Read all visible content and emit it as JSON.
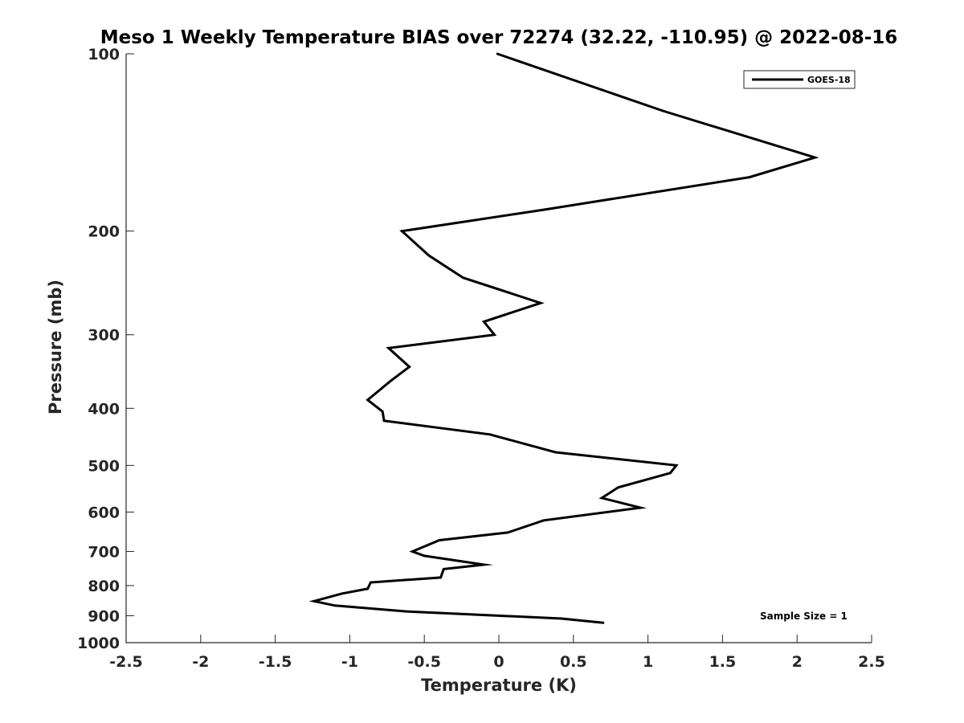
{
  "chart_data": {
    "type": "line",
    "title": "Meso 1 Weekly Temperature BIAS over 72274 (32.22, -110.95) @ 2022-08-16",
    "xlabel": "Temperature (K)",
    "ylabel": "Pressure (mb)",
    "xlim": [
      -2.5,
      2.5
    ],
    "ylim": [
      100,
      1000
    ],
    "yscale": "log",
    "y_reversed": true,
    "x_ticks": [
      -2.5,
      -2,
      -1.5,
      -1,
      -0.5,
      0,
      0.5,
      1,
      1.5,
      2,
      2.5
    ],
    "x_tick_labels": [
      "-2.5",
      "-2",
      "-1.5",
      "-1",
      "-0.5",
      "0",
      "0.5",
      "1",
      "1.5",
      "2",
      "2.5"
    ],
    "y_ticks": [
      100,
      200,
      300,
      400,
      500,
      600,
      700,
      800,
      900,
      1000
    ],
    "y_tick_labels": [
      "100",
      "200",
      "300",
      "400",
      "500",
      "600",
      "700",
      "800",
      "900",
      "1000"
    ],
    "grid": false,
    "legend": {
      "placement": "top-right",
      "entries": [
        "GOES-18"
      ]
    },
    "annotation": "Sample Size = 1",
    "series": [
      {
        "name": "GOES-18",
        "color": "#000000",
        "points": [
          {
            "x": -0.01,
            "y": 100
          },
          {
            "x": 1.1,
            "y": 125
          },
          {
            "x": 2.12,
            "y": 150
          },
          {
            "x": 1.68,
            "y": 162
          },
          {
            "x": 0.3,
            "y": 184
          },
          {
            "x": -0.65,
            "y": 200
          },
          {
            "x": -0.47,
            "y": 220
          },
          {
            "x": -0.24,
            "y": 240
          },
          {
            "x": 0.28,
            "y": 265
          },
          {
            "x": -0.1,
            "y": 285
          },
          {
            "x": -0.03,
            "y": 300
          },
          {
            "x": -0.74,
            "y": 316
          },
          {
            "x": -0.6,
            "y": 340
          },
          {
            "x": -0.73,
            "y": 360
          },
          {
            "x": -0.88,
            "y": 387
          },
          {
            "x": -0.78,
            "y": 405
          },
          {
            "x": -0.77,
            "y": 420
          },
          {
            "x": -0.06,
            "y": 443
          },
          {
            "x": 0.38,
            "y": 475
          },
          {
            "x": 1.19,
            "y": 500
          },
          {
            "x": 1.15,
            "y": 515
          },
          {
            "x": 0.8,
            "y": 545
          },
          {
            "x": 0.69,
            "y": 568
          },
          {
            "x": 0.95,
            "y": 590
          },
          {
            "x": 0.3,
            "y": 620
          },
          {
            "x": 0.06,
            "y": 650
          },
          {
            "x": -0.4,
            "y": 670
          },
          {
            "x": -0.58,
            "y": 700
          },
          {
            "x": -0.5,
            "y": 712
          },
          {
            "x": -0.1,
            "y": 737
          },
          {
            "x": -0.37,
            "y": 750
          },
          {
            "x": -0.39,
            "y": 775
          },
          {
            "x": -0.86,
            "y": 790
          },
          {
            "x": -0.88,
            "y": 810
          },
          {
            "x": -1.05,
            "y": 825
          },
          {
            "x": -1.24,
            "y": 850
          },
          {
            "x": -1.1,
            "y": 865
          },
          {
            "x": -0.62,
            "y": 885
          },
          {
            "x": 0.42,
            "y": 910
          },
          {
            "x": 0.7,
            "y": 925
          }
        ]
      }
    ]
  }
}
